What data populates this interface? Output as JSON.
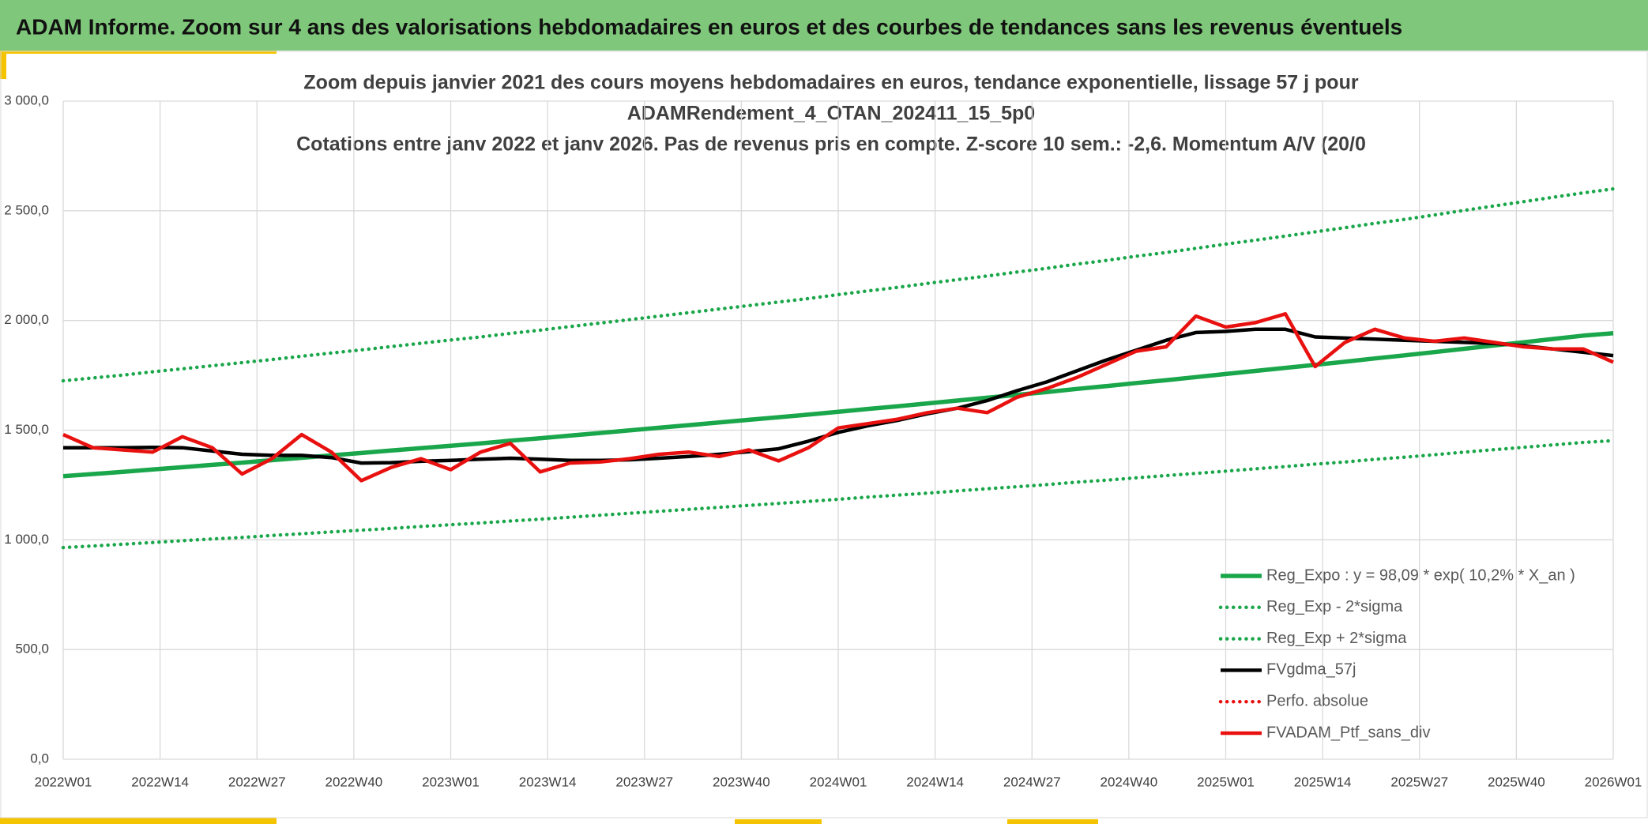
{
  "header": {
    "title": "ADAM Informe. Zoom sur 4 ans des valorisations hebdomadaires en euros et des courbes de tendances sans les revenus éventuels"
  },
  "chart_data": {
    "type": "line",
    "title": [
      "Zoom depuis janvier 2021 des cours moyens hebdomadaires en euros, tendance exponentielle, lissage 57 j pour",
      "ADAMRendement_4_OTAN_202411_15_5p0",
      "Cotations entre janv 2022 et janv 2026. Pas de revenus pris en compte. Z-score 10 sem.: -2,6. Momentum A/V (20/0"
    ],
    "x": [
      0,
      4,
      8,
      12,
      16,
      20,
      24,
      28,
      32,
      36,
      40,
      44,
      48,
      52,
      56,
      60,
      64,
      68,
      72,
      76,
      80,
      84,
      88,
      92,
      96,
      100,
      104,
      108,
      112,
      116,
      120,
      124,
      128,
      132,
      136,
      140,
      144,
      148,
      152,
      156,
      160,
      164,
      168,
      172,
      176,
      180,
      184,
      188,
      192,
      196,
      200,
      204,
      208
    ],
    "xlim": [
      0,
      208
    ],
    "xticks": [
      {
        "value": 0,
        "label": "2022W01"
      },
      {
        "value": 13,
        "label": "2022W14"
      },
      {
        "value": 26,
        "label": "2022W27"
      },
      {
        "value": 39,
        "label": "2022W40"
      },
      {
        "value": 52,
        "label": "2023W01"
      },
      {
        "value": 65,
        "label": "2023W14"
      },
      {
        "value": 78,
        "label": "2023W27"
      },
      {
        "value": 91,
        "label": "2023W40"
      },
      {
        "value": 104,
        "label": "2024W01"
      },
      {
        "value": 117,
        "label": "2024W14"
      },
      {
        "value": 130,
        "label": "2024W27"
      },
      {
        "value": 143,
        "label": "2024W40"
      },
      {
        "value": 156,
        "label": "2025W01"
      },
      {
        "value": 169,
        "label": "2025W14"
      },
      {
        "value": 182,
        "label": "2025W27"
      },
      {
        "value": 195,
        "label": "2025W40"
      },
      {
        "value": 208,
        "label": "2026W01"
      }
    ],
    "ylim": [
      0,
      3000
    ],
    "yticks": [
      {
        "value": 0,
        "label": "0,0"
      },
      {
        "value": 500,
        "label": "500,0"
      },
      {
        "value": 1000,
        "label": "1 000,0"
      },
      {
        "value": 1500,
        "label": "1 500,0"
      },
      {
        "value": 2000,
        "label": "2 000,0"
      },
      {
        "value": 2500,
        "label": "2 500,0"
      },
      {
        "value": 3000,
        "label": "3 000,0"
      }
    ],
    "grid": true,
    "legend": "lower right",
    "series": [
      {
        "name": "Reg_Expo : y = 98,09 * exp( 10,2% *  X_an )",
        "color": "#1aa64a",
        "style": "solid",
        "values": [
          1290,
          1300,
          1310,
          1321,
          1331,
          1342,
          1352,
          1363,
          1374,
          1385,
          1396,
          1407,
          1418,
          1429,
          1440,
          1452,
          1463,
          1475,
          1487,
          1499,
          1511,
          1523,
          1535,
          1547,
          1559,
          1571,
          1584,
          1597,
          1609,
          1622,
          1635,
          1648,
          1661,
          1674,
          1688,
          1701,
          1715,
          1728,
          1742,
          1756,
          1770,
          1784,
          1798,
          1812,
          1827,
          1841,
          1856,
          1871,
          1886,
          1901,
          1916,
          1931,
          1942
        ]
      },
      {
        "name": "Reg_Exp - 2*sigma",
        "color": "#1aa64a",
        "style": "dotted",
        "values": [
          965,
          972,
          980,
          988,
          996,
          1004,
          1011,
          1020,
          1028,
          1036,
          1044,
          1052,
          1061,
          1069,
          1077,
          1086,
          1094,
          1103,
          1112,
          1121,
          1130,
          1139,
          1148,
          1157,
          1166,
          1175,
          1185,
          1195,
          1204,
          1213,
          1223,
          1233,
          1242,
          1252,
          1263,
          1272,
          1283,
          1293,
          1303,
          1313,
          1324,
          1334,
          1345,
          1355,
          1367,
          1377,
          1388,
          1400,
          1411,
          1422,
          1433,
          1444,
          1452
        ]
      },
      {
        "name": "Reg_Exp + 2*sigma",
        "color": "#1aa64a",
        "style": "dotted",
        "values": [
          1725,
          1738,
          1751,
          1766,
          1780,
          1794,
          1808,
          1822,
          1837,
          1852,
          1866,
          1881,
          1896,
          1911,
          1925,
          1941,
          1956,
          1972,
          1988,
          2004,
          2020,
          2036,
          2052,
          2068,
          2084,
          2100,
          2118,
          2135,
          2151,
          2169,
          2186,
          2203,
          2221,
          2238,
          2257,
          2274,
          2293,
          2310,
          2329,
          2348,
          2366,
          2385,
          2404,
          2423,
          2443,
          2461,
          2481,
          2502,
          2522,
          2542,
          2562,
          2582,
          2600
        ]
      },
      {
        "name": "FVgdma_57j",
        "color": "#000000",
        "style": "solid",
        "values": [
          1420,
          1420,
          1420,
          1422,
          1420,
          1405,
          1390,
          1385,
          1385,
          1375,
          1350,
          1352,
          1358,
          1362,
          1368,
          1372,
          1368,
          1362,
          1362,
          1365,
          1372,
          1380,
          1390,
          1402,
          1415,
          1450,
          1490,
          1520,
          1545,
          1575,
          1600,
          1635,
          1680,
          1720,
          1770,
          1820,
          1865,
          1910,
          1945,
          1950,
          1960,
          1960,
          1925,
          1920,
          1915,
          1910,
          1905,
          1900,
          1895,
          1885,
          1870,
          1855,
          1840
        ]
      },
      {
        "name": "Perfo. absolue",
        "color": "#e8110f",
        "style": "dotted",
        "values": [
          null,
          null,
          null,
          null,
          null,
          null,
          null,
          null,
          null,
          null,
          null,
          null,
          null,
          null,
          null,
          null,
          null,
          null,
          null,
          null,
          null,
          null,
          null,
          null,
          null,
          null,
          null,
          null,
          null,
          null,
          null,
          null,
          null,
          null,
          null,
          null,
          null,
          null,
          null,
          null,
          null,
          null,
          null,
          null,
          null,
          null,
          null,
          null,
          null,
          null,
          null,
          null,
          null
        ]
      },
      {
        "name": "FVADAM_Ptf_sans_div",
        "color": "#e8110f",
        "style": "solid",
        "values": [
          1480,
          1420,
          1410,
          1400,
          1470,
          1420,
          1300,
          1370,
          1480,
          1400,
          1270,
          1330,
          1370,
          1320,
          1400,
          1440,
          1310,
          1350,
          1355,
          1370,
          1390,
          1400,
          1380,
          1410,
          1360,
          1420,
          1510,
          1530,
          1550,
          1580,
          1600,
          1580,
          1650,
          1690,
          1740,
          1800,
          1860,
          1880,
          2020,
          1970,
          1990,
          2030,
          1790,
          1900,
          1960,
          1920,
          1905,
          1920,
          1900,
          1880,
          1870,
          1870,
          1810
        ]
      }
    ]
  }
}
